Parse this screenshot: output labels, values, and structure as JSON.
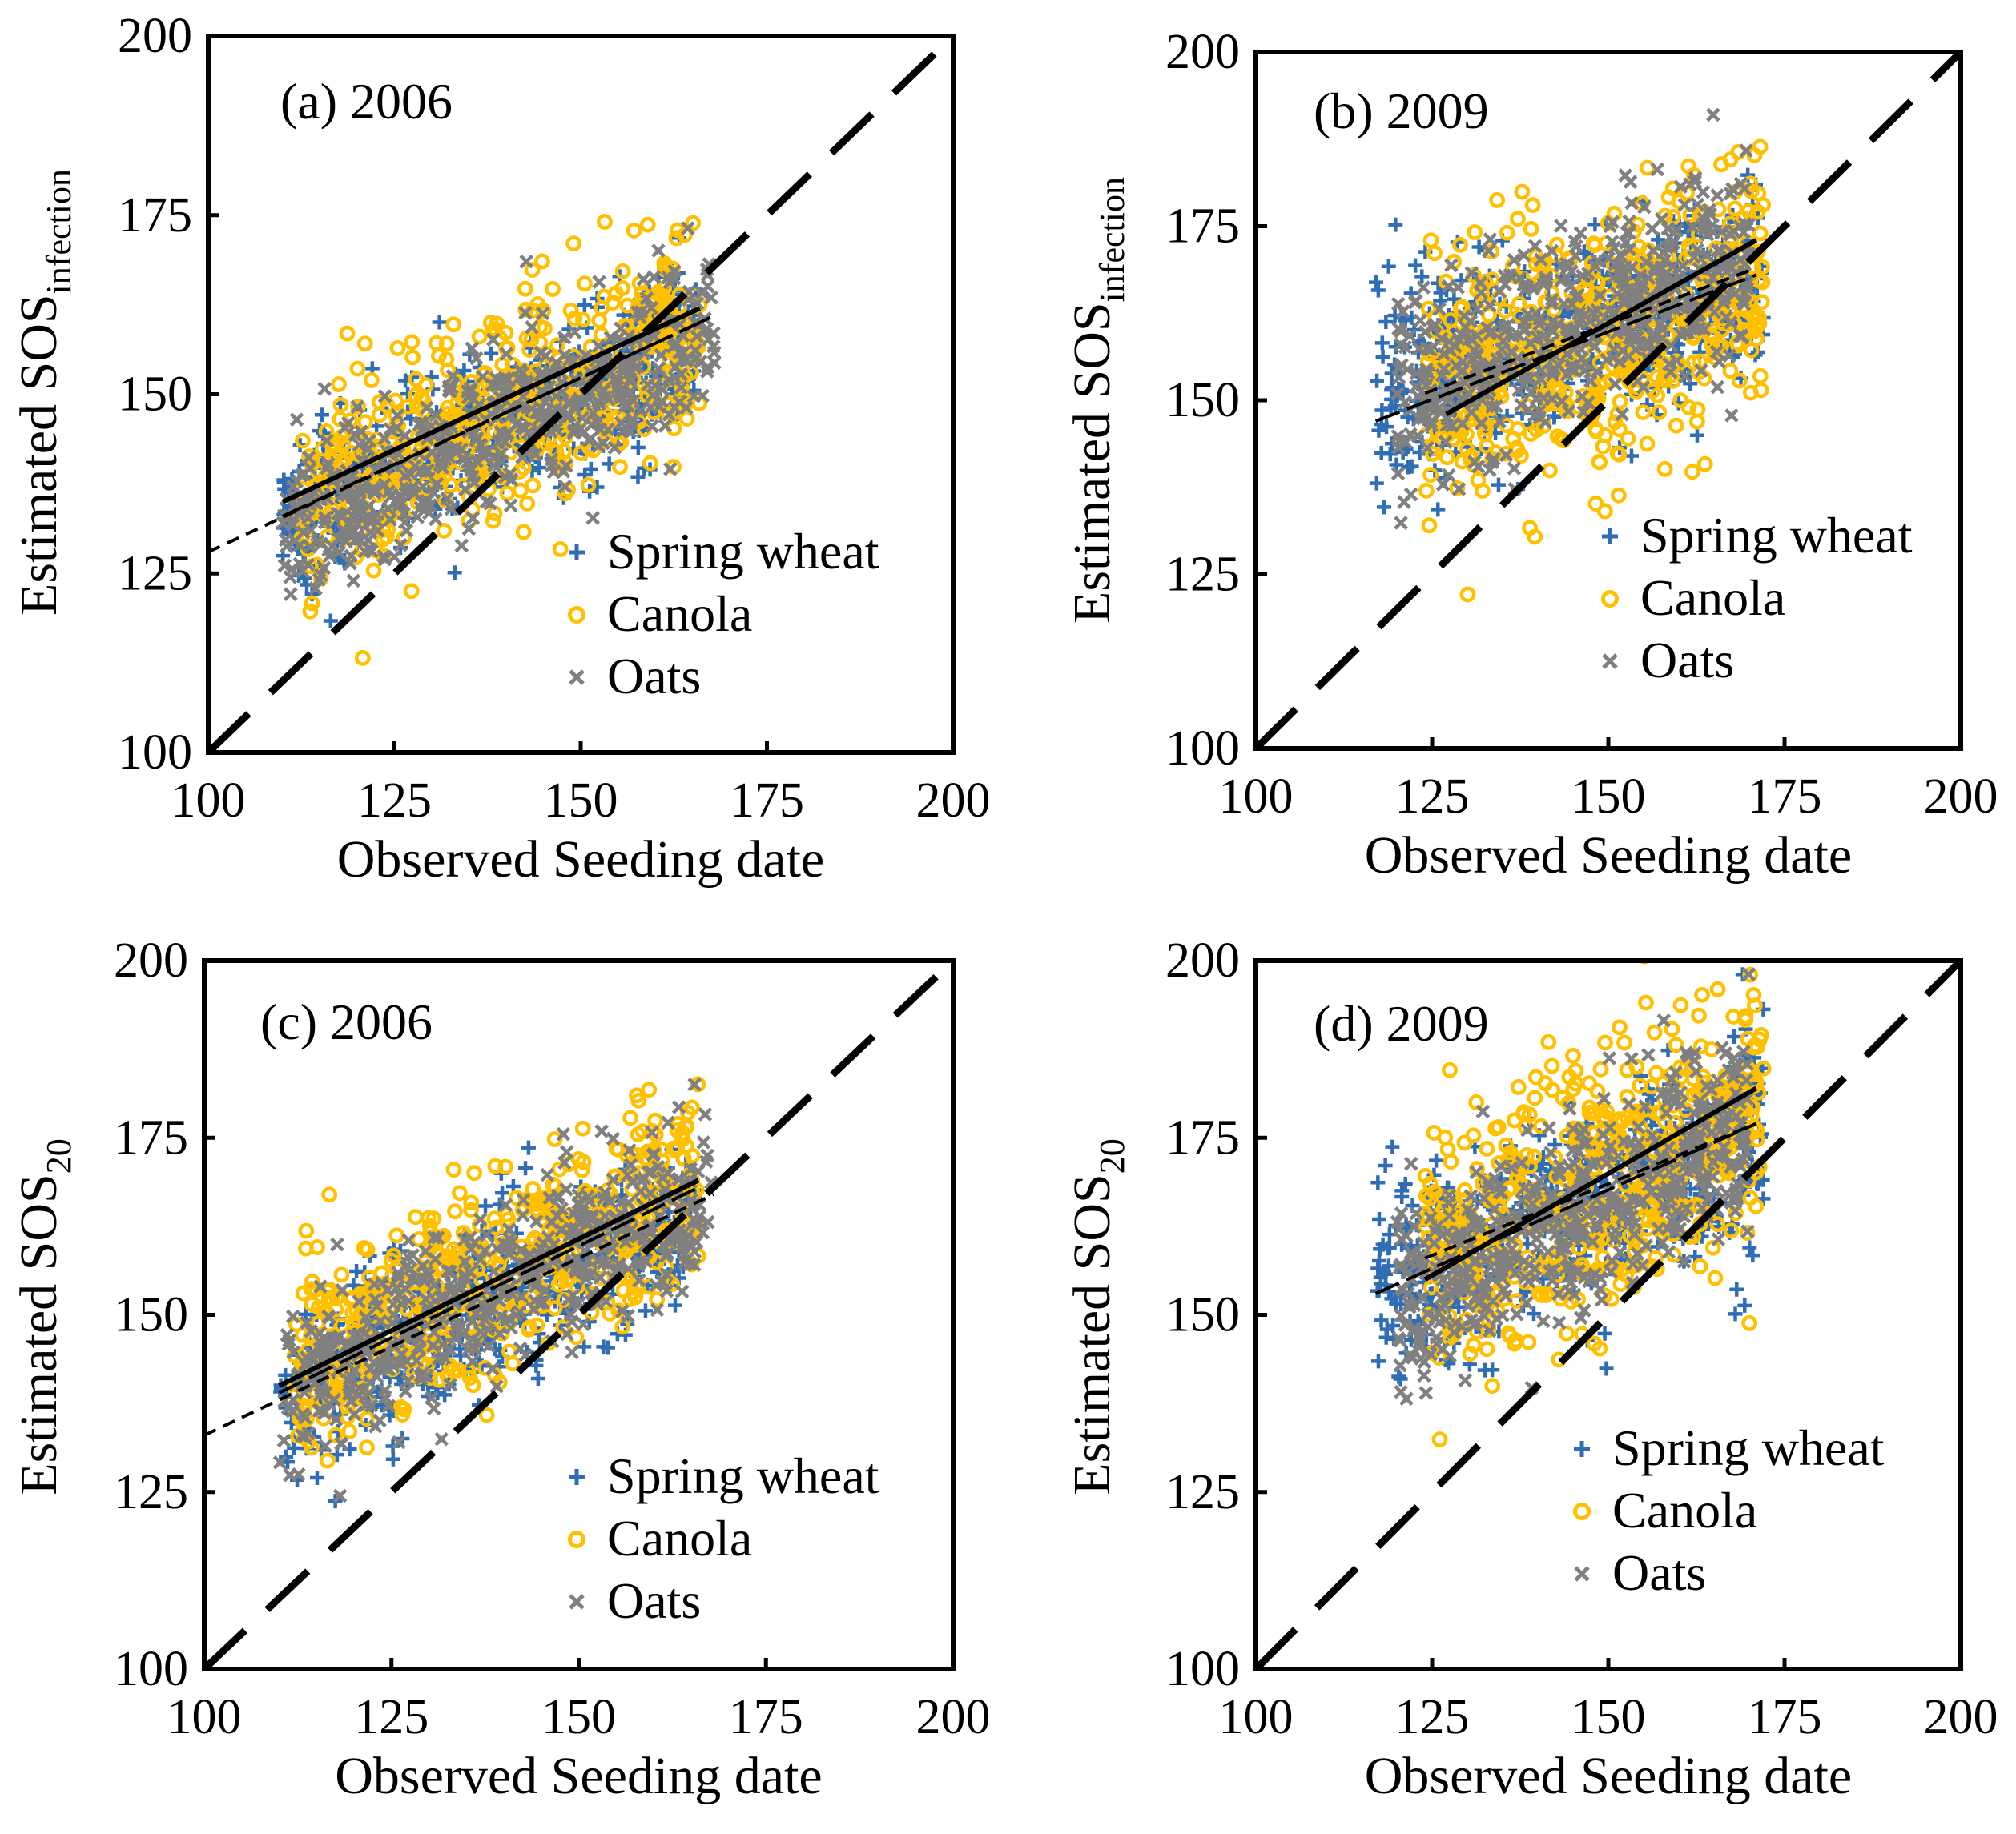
{
  "chart_data": [
    {
      "type": "scatter",
      "panel_label": "(a) 2006",
      "xlabel": "Observed Seeding date",
      "ylabel_main": "Estimated SOS",
      "ylabel_sub": "infection",
      "xlim": [
        100,
        200
      ],
      "ylim": [
        100,
        200
      ],
      "xticks": [
        "100",
        "125",
        "150",
        "175",
        "200"
      ],
      "yticks": [
        "100",
        "125",
        "150",
        "175",
        "200"
      ],
      "legend": [
        "Spring wheat",
        "Canola",
        "Oats"
      ],
      "clusters": {
        "spring_wheat": {
          "x_range": [
            110,
            166
          ],
          "center_intercept": 83,
          "slope": 0.45,
          "spread": 6
        },
        "canola": {
          "x_range": [
            112,
            166
          ],
          "center_intercept": 80,
          "slope": 0.48,
          "spread": 7
        },
        "oats": {
          "x_range": [
            110,
            168
          ],
          "center_intercept": 78,
          "slope": 0.48,
          "spread": 6
        }
      },
      "one_to_one": [
        [
          100,
          100
        ],
        [
          200,
          200
        ]
      ],
      "regression_lines": [
        {
          "style": "solid",
          "x": [
            110,
            166
          ],
          "y": [
            135,
            162
          ]
        },
        {
          "style": "long-dash",
          "x": [
            110,
            166
          ],
          "y": [
            133,
            160
          ]
        },
        {
          "style": "short-dash",
          "x": [
            100,
            168
          ],
          "y": [
            128,
            161
          ]
        }
      ]
    },
    {
      "type": "scatter",
      "panel_label": "(b) 2009",
      "xlabel": "Observed Seeding date",
      "ylabel_main": "Estimated SOS",
      "ylabel_sub": "infection",
      "xlim": [
        100,
        200
      ],
      "ylim": [
        100,
        200
      ],
      "xticks": [
        "100",
        "125",
        "150",
        "175",
        "200"
      ],
      "yticks": [
        "100",
        "125",
        "150",
        "175",
        "200"
      ],
      "legend": [
        "Spring wheat",
        "Canola",
        "Oats"
      ],
      "clusters": {
        "spring_wheat": {
          "x_range": [
            117,
            172
          ],
          "center_intercept": 113,
          "slope": 0.32,
          "spread": 7
        },
        "canola": {
          "x_range": [
            124,
            172
          ],
          "center_intercept": 112,
          "slope": 0.32,
          "spread": 9
        },
        "oats": {
          "x_range": [
            120,
            170
          ],
          "center_intercept": 100,
          "slope": 0.42,
          "spread": 7
        }
      },
      "one_to_one": [
        [
          100,
          100
        ],
        [
          200,
          200
        ]
      ],
      "regression_lines": [
        {
          "style": "solid",
          "x": [
            127,
            171
          ],
          "y": [
            148,
            173
          ]
        },
        {
          "style": "long-dash",
          "x": [
            117,
            171
          ],
          "y": [
            147,
            168
          ]
        },
        {
          "style": "short-dash",
          "x": [
            124,
            171
          ],
          "y": [
            151,
            169
          ]
        }
      ]
    },
    {
      "type": "scatter",
      "panel_label": "(c) 2006",
      "xlabel": "Observed Seeding date",
      "ylabel_main": "Estimated SOS",
      "ylabel_sub": "20",
      "xlim": [
        100,
        200
      ],
      "ylim": [
        100,
        200
      ],
      "xticks": [
        "100",
        "125",
        "150",
        "175",
        "200"
      ],
      "yticks": [
        "100",
        "125",
        "150",
        "175",
        "200"
      ],
      "legend": [
        "Spring wheat",
        "Canola",
        "Oats"
      ],
      "clusters": {
        "spring_wheat": {
          "x_range": [
            110,
            166
          ],
          "center_intercept": 88,
          "slope": 0.46,
          "spread": 6
        },
        "canola": {
          "x_range": [
            112,
            166
          ],
          "center_intercept": 86,
          "slope": 0.5,
          "spread": 7
        },
        "oats": {
          "x_range": [
            110,
            168
          ],
          "center_intercept": 84,
          "slope": 0.5,
          "spread": 6
        }
      },
      "one_to_one": [
        [
          100,
          100
        ],
        [
          200,
          200
        ]
      ],
      "regression_lines": [
        {
          "style": "solid",
          "x": [
            110,
            166
          ],
          "y": [
            140,
            169
          ]
        },
        {
          "style": "long-dash",
          "x": [
            110,
            166
          ],
          "y": [
            139,
            168
          ]
        },
        {
          "style": "short-dash",
          "x": [
            100,
            168
          ],
          "y": [
            133,
            167
          ]
        }
      ]
    },
    {
      "type": "scatter",
      "panel_label": "(d) 2009",
      "xlabel": "Observed Seeding date",
      "ylabel_main": "Estimated SOS",
      "ylabel_sub": "20",
      "xlim": [
        100,
        200
      ],
      "ylim": [
        100,
        200
      ],
      "xticks": [
        "100",
        "125",
        "150",
        "175",
        "200"
      ],
      "yticks": [
        "100",
        "125",
        "150",
        "175",
        "200"
      ],
      "legend": [
        "Spring wheat",
        "Canola",
        "Oats"
      ],
      "clusters": {
        "spring_wheat": {
          "x_range": [
            117,
            172
          ],
          "center_intercept": 110,
          "slope": 0.38,
          "spread": 7
        },
        "canola": {
          "x_range": [
            124,
            172
          ],
          "center_intercept": 100,
          "slope": 0.46,
          "spread": 9
        },
        "oats": {
          "x_range": [
            120,
            170
          ],
          "center_intercept": 92,
          "slope": 0.5,
          "spread": 7
        }
      },
      "one_to_one": [
        [
          100,
          100
        ],
        [
          200,
          200
        ]
      ],
      "regression_lines": [
        {
          "style": "solid",
          "x": [
            124,
            171
          ],
          "y": [
            155,
            182
          ]
        },
        {
          "style": "long-dash",
          "x": [
            117,
            171
          ],
          "y": [
            153,
            177
          ]
        },
        {
          "style": "short-dash",
          "x": [
            124,
            171
          ],
          "y": [
            158,
            177
          ]
        }
      ]
    }
  ],
  "colors": {
    "spring_wheat": "#2f6eb5",
    "canola": "#ffc000",
    "oats": "#808080",
    "axis": "#000000"
  }
}
